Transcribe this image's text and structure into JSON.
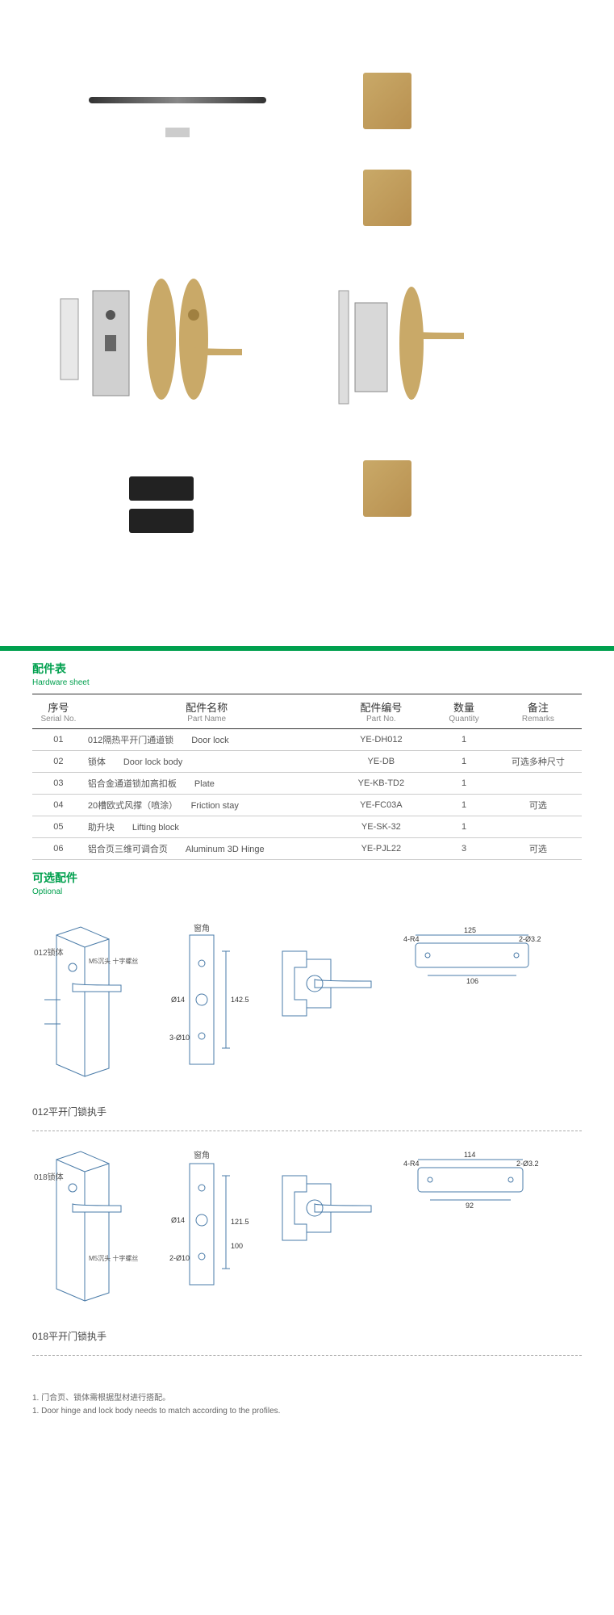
{
  "section_hardware": {
    "cn": "配件表",
    "en": "Hardware sheet"
  },
  "section_optional": {
    "cn": "可选配件",
    "en": "Optional"
  },
  "table": {
    "headers": {
      "serial": {
        "cn": "序号",
        "en": "Serial No."
      },
      "name": {
        "cn": "配件名称",
        "en": "Part Name"
      },
      "part": {
        "cn": "配件编号",
        "en": "Part No."
      },
      "qty": {
        "cn": "数量",
        "en": "Quantity"
      },
      "remark": {
        "cn": "备注",
        "en": "Remarks"
      }
    },
    "rows": [
      {
        "serial": "01",
        "name_cn": "012隔热平开门通道锁",
        "name_en": "Door lock",
        "part": "YE-DH012",
        "qty": "1",
        "remark": ""
      },
      {
        "serial": "02",
        "name_cn": "锁体",
        "name_en": "Door lock body",
        "part": "YE-DB",
        "qty": "1",
        "remark": "可选多种尺寸"
      },
      {
        "serial": "03",
        "name_cn": "铝合金通道锁加高扣板",
        "name_en": "Plate",
        "part": "YE-KB-TD2",
        "qty": "1",
        "remark": ""
      },
      {
        "serial": "04",
        "name_cn": "20槽欧式风撑（喷涂）",
        "name_en": "Friction stay",
        "part": "YE-FC03A",
        "qty": "1",
        "remark": "可选"
      },
      {
        "serial": "05",
        "name_cn": "助升块",
        "name_en": "Lifting block",
        "part": "YE-SK-32",
        "qty": "1",
        "remark": ""
      },
      {
        "serial": "06",
        "name_cn": "铝合页三维可调合页",
        "name_en": "Aluminum 3D Hinge",
        "part": "YE-PJL22",
        "qty": "3",
        "remark": "可选"
      }
    ]
  },
  "diagrams": {
    "labels": {
      "window_edge": "窗角",
      "lock_body_012": "012锁体",
      "lock_body_018": "018锁体",
      "screw": "M5沉头\n十字螺丝"
    },
    "dims": {
      "d1_h": "142.5",
      "d1_hole": "Ø14",
      "d1_holes3": "3-Ø10",
      "d2_top_w": "125",
      "d2_inner_w": "106",
      "d2_r": "4-R4",
      "d2_hole": "2-Ø3.2",
      "d3_h": "121.5",
      "d3_inner_h": "100",
      "d3_hole": "Ø14",
      "d3_holes2": "2-Ø10",
      "d4_top_w": "114",
      "d4_inner_w": "92",
      "d4_r": "4-R4",
      "d4_hole": "2-Ø3.2"
    },
    "title1": "012平开门锁执手",
    "title2": "018平开门锁执手"
  },
  "footnote": {
    "cn": "1. 门合页、锁体需根据型材进行搭配。",
    "en": "1. Door hinge and lock body needs to match according to the profiles."
  },
  "colors": {
    "accent": "#00a04e",
    "brass": "#c9a968",
    "tech_line": "#4a7ba8"
  }
}
